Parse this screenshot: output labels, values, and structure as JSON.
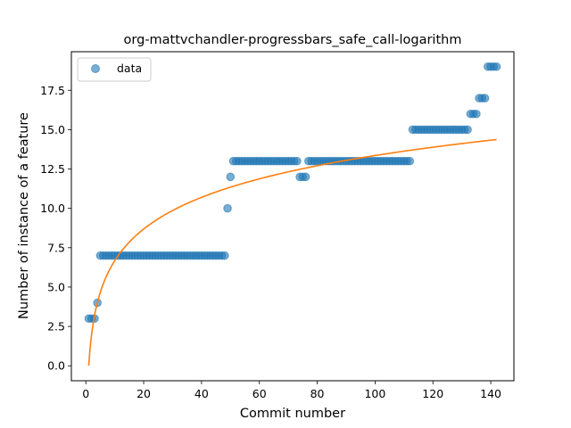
{
  "chart_data": {
    "type": "scatter",
    "title": "org-mattvchandler-progressbars_safe_call-logarithm",
    "xlabel": "Commit number",
    "ylabel": "Number of instance of a feature",
    "xlim": [
      -5,
      148
    ],
    "ylim": [
      -0.95,
      19.95
    ],
    "xticks": [
      0,
      20,
      40,
      60,
      80,
      100,
      120,
      140
    ],
    "yticks": [
      0.0,
      2.5,
      5.0,
      7.5,
      10.0,
      12.5,
      15.0,
      17.5
    ],
    "xtick_labels": [
      "0",
      "20",
      "40",
      "60",
      "80",
      "100",
      "120",
      "140"
    ],
    "ytick_labels": [
      "0.0",
      "2.5",
      "5.0",
      "7.5",
      "10.0",
      "12.5",
      "15.0",
      "17.5"
    ],
    "legend": {
      "placement": "top-left",
      "entries": [
        "data"
      ]
    },
    "grid": false,
    "series": [
      {
        "name": "data",
        "kind": "scatter",
        "color": "#1f77b4",
        "opacity": 0.6,
        "x": [
          1,
          2,
          3,
          4,
          5,
          6,
          7,
          8,
          9,
          10,
          11,
          12,
          13,
          14,
          15,
          16,
          17,
          18,
          19,
          20,
          21,
          22,
          23,
          24,
          25,
          26,
          27,
          28,
          29,
          30,
          31,
          32,
          33,
          34,
          35,
          36,
          37,
          38,
          39,
          40,
          41,
          42,
          43,
          44,
          45,
          46,
          47,
          48,
          49,
          50,
          51,
          52,
          53,
          54,
          55,
          56,
          57,
          58,
          59,
          60,
          61,
          62,
          63,
          64,
          65,
          66,
          67,
          68,
          69,
          70,
          71,
          72,
          73,
          74,
          75,
          76,
          77,
          78,
          79,
          80,
          81,
          82,
          83,
          84,
          85,
          86,
          87,
          88,
          89,
          90,
          91,
          92,
          93,
          94,
          95,
          96,
          97,
          98,
          99,
          100,
          101,
          102,
          103,
          104,
          105,
          106,
          107,
          108,
          109,
          110,
          111,
          112,
          113,
          114,
          115,
          116,
          117,
          118,
          119,
          120,
          121,
          122,
          123,
          124,
          125,
          126,
          127,
          128,
          129,
          130,
          131,
          132,
          133,
          134,
          135,
          136,
          137,
          138,
          139,
          140,
          141,
          142
        ],
        "y": [
          3,
          3,
          3,
          4,
          7,
          7,
          7,
          7,
          7,
          7,
          7,
          7,
          7,
          7,
          7,
          7,
          7,
          7,
          7,
          7,
          7,
          7,
          7,
          7,
          7,
          7,
          7,
          7,
          7,
          7,
          7,
          7,
          7,
          7,
          7,
          7,
          7,
          7,
          7,
          7,
          7,
          7,
          7,
          7,
          7,
          7,
          7,
          7,
          10,
          12,
          13,
          13,
          13,
          13,
          13,
          13,
          13,
          13,
          13,
          13,
          13,
          13,
          13,
          13,
          13,
          13,
          13,
          13,
          13,
          13,
          13,
          13,
          13,
          12,
          12,
          12,
          13,
          13,
          13,
          13,
          13,
          13,
          13,
          13,
          13,
          13,
          13,
          13,
          13,
          13,
          13,
          13,
          13,
          13,
          13,
          13,
          13,
          13,
          13,
          13,
          13,
          13,
          13,
          13,
          13,
          13,
          13,
          13,
          13,
          13,
          13,
          13,
          15,
          15,
          15,
          15,
          15,
          15,
          15,
          15,
          15,
          15,
          15,
          15,
          15,
          15,
          15,
          15,
          15,
          15,
          15,
          15,
          16,
          16,
          16,
          17,
          17,
          17,
          19,
          19,
          19,
          19
        ]
      },
      {
        "name": "",
        "kind": "line",
        "color": "#ff7f0e",
        "function": "y = 2.9 * ln(x)",
        "x_range": [
          1,
          142
        ]
      }
    ]
  }
}
